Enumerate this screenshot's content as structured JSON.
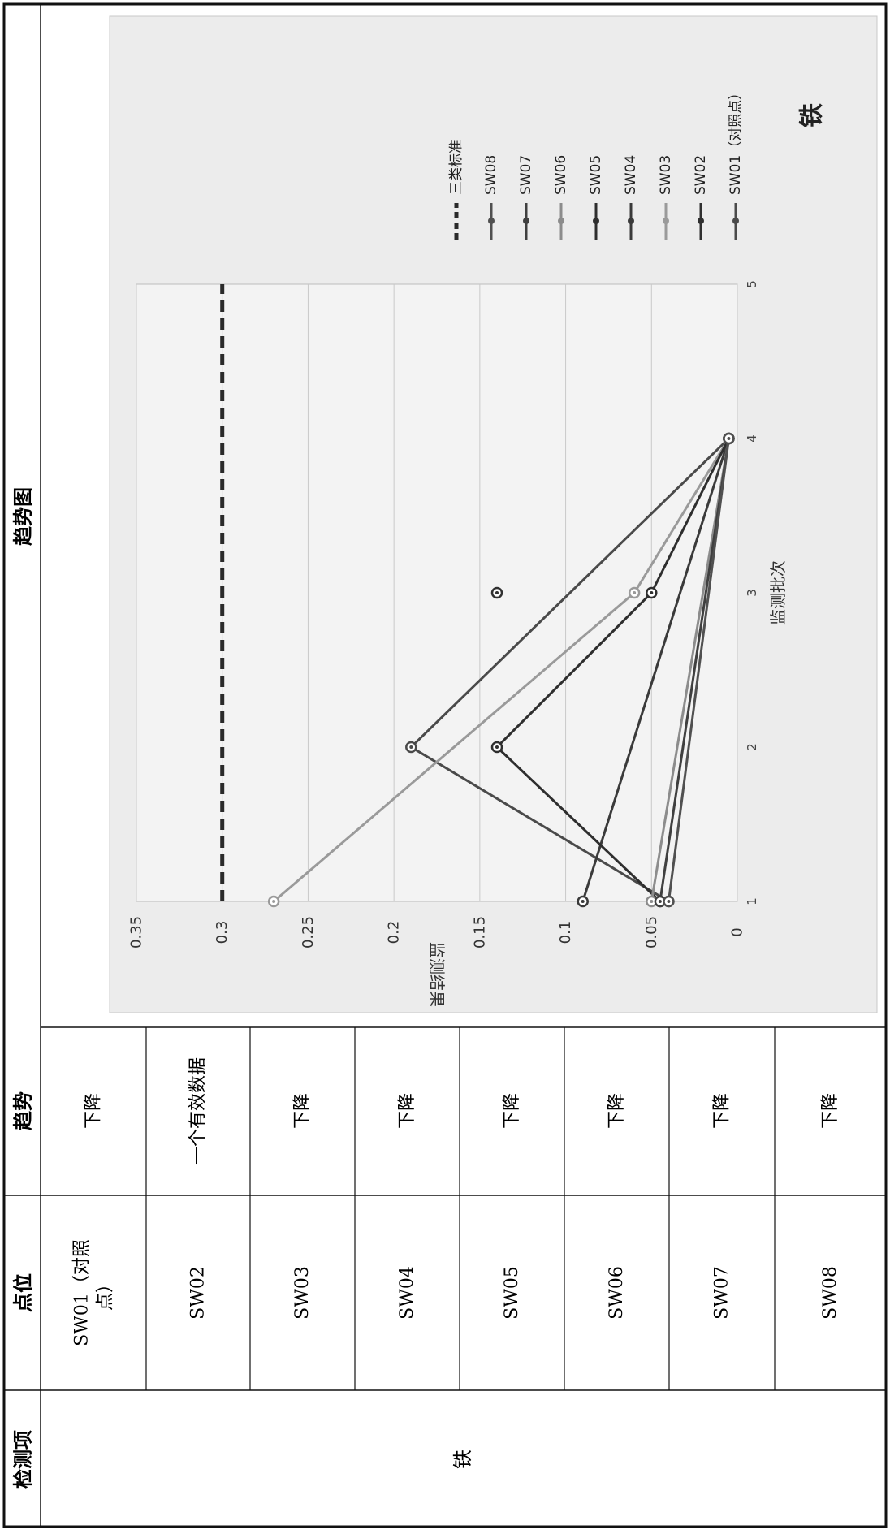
{
  "table": {
    "headers": {
      "item": "检测项",
      "site": "点位",
      "trend": "趋势",
      "chart": "趋势图"
    },
    "item_value": "铁",
    "rows": [
      {
        "site": "SW01（对照点）",
        "trend": "下降"
      },
      {
        "site": "SW02",
        "trend": "一个有效数据"
      },
      {
        "site": "SW03",
        "trend": "下降"
      },
      {
        "site": "SW04",
        "trend": "下降"
      },
      {
        "site": "SW05",
        "trend": "下降"
      },
      {
        "site": "SW06",
        "trend": "下降"
      },
      {
        "site": "SW07",
        "trend": "下降"
      },
      {
        "site": "SW08",
        "trend": "下降"
      }
    ]
  },
  "chart_data": {
    "type": "line",
    "title": "铁",
    "xlabel": "监测批次",
    "ylabel": "监测结果",
    "xlim": [
      1,
      5
    ],
    "ylim": [
      0,
      0.35
    ],
    "xticks": [
      "1",
      "2",
      "3",
      "4",
      "5"
    ],
    "yticks": [
      "0",
      "0.05",
      "0.1",
      "0.15",
      "0.2",
      "0.25",
      "0.3",
      "0.35"
    ],
    "grid": true,
    "legend_position": "right",
    "series": [
      {
        "name": "SW01（对照点）",
        "color": "#4a4a4a",
        "dashed": false,
        "points": [
          [
            1,
            0.04
          ],
          [
            2,
            0.19
          ],
          [
            4,
            0.005
          ]
        ]
      },
      {
        "name": "SW02",
        "color": "#303030",
        "dashed": false,
        "points": [
          [
            3,
            0.14
          ]
        ]
      },
      {
        "name": "SW03",
        "color": "#9a9a9a",
        "dashed": false,
        "points": [
          [
            1,
            0.27
          ],
          [
            3,
            0.06
          ],
          [
            4,
            0.005
          ]
        ]
      },
      {
        "name": "SW04",
        "color": "#3a3a3a",
        "dashed": false,
        "points": [
          [
            1,
            0.09
          ],
          [
            4,
            0.005
          ]
        ]
      },
      {
        "name": "SW05",
        "color": "#2e2e2e",
        "dashed": false,
        "points": [
          [
            1,
            0.045
          ],
          [
            2,
            0.14
          ],
          [
            3,
            0.05
          ],
          [
            4,
            0.005
          ]
        ]
      },
      {
        "name": "SW06",
        "color": "#8c8c8c",
        "dashed": false,
        "points": [
          [
            1,
            0.05
          ],
          [
            4,
            0.005
          ]
        ]
      },
      {
        "name": "SW07",
        "color": "#404040",
        "dashed": false,
        "points": [
          [
            1,
            0.045
          ],
          [
            4,
            0.005
          ]
        ]
      },
      {
        "name": "SW08",
        "color": "#505050",
        "dashed": false,
        "points": [
          [
            1,
            0.04
          ],
          [
            4,
            0.005
          ]
        ]
      },
      {
        "name": "三类标准",
        "color": "#2a2a2a",
        "dashed": true,
        "points": [
          [
            1,
            0.3
          ],
          [
            5,
            0.3
          ]
        ]
      }
    ]
  }
}
